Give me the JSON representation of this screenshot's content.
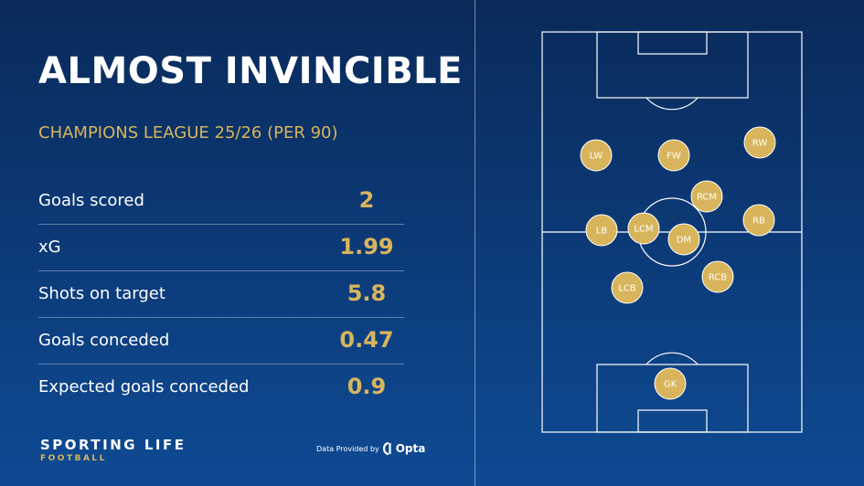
{
  "header": {
    "title": "ALMOST INVINCIBLE",
    "subtitle": "CHAMPIONS LEAGUE 25/26 (PER 90)"
  },
  "stats": [
    {
      "label": "Goals scored",
      "value": "2"
    },
    {
      "label": "xG",
      "value": "1.99"
    },
    {
      "label": "Shots on target",
      "value": "5.8"
    },
    {
      "label": "Goals conceded",
      "value": "0.47"
    },
    {
      "label": "Expected goals conceded",
      "value": "0.9"
    }
  ],
  "footer": {
    "brand": "SPORTING LIFE",
    "brand_sub": "FOOTBALL",
    "credit": "Data Provided by",
    "provider": "Opta"
  },
  "formation": {
    "players": [
      {
        "pos": "LW"
      },
      {
        "pos": "FW"
      },
      {
        "pos": "RW"
      },
      {
        "pos": "RCM"
      },
      {
        "pos": "RB"
      },
      {
        "pos": "LB"
      },
      {
        "pos": "LCM"
      },
      {
        "pos": "DM"
      },
      {
        "pos": "RCB"
      },
      {
        "pos": "LCB"
      },
      {
        "pos": "GK"
      }
    ]
  },
  "colors": {
    "accent": "#d8b55c",
    "background": "#0c3d7d",
    "lines": "#ffffff"
  }
}
